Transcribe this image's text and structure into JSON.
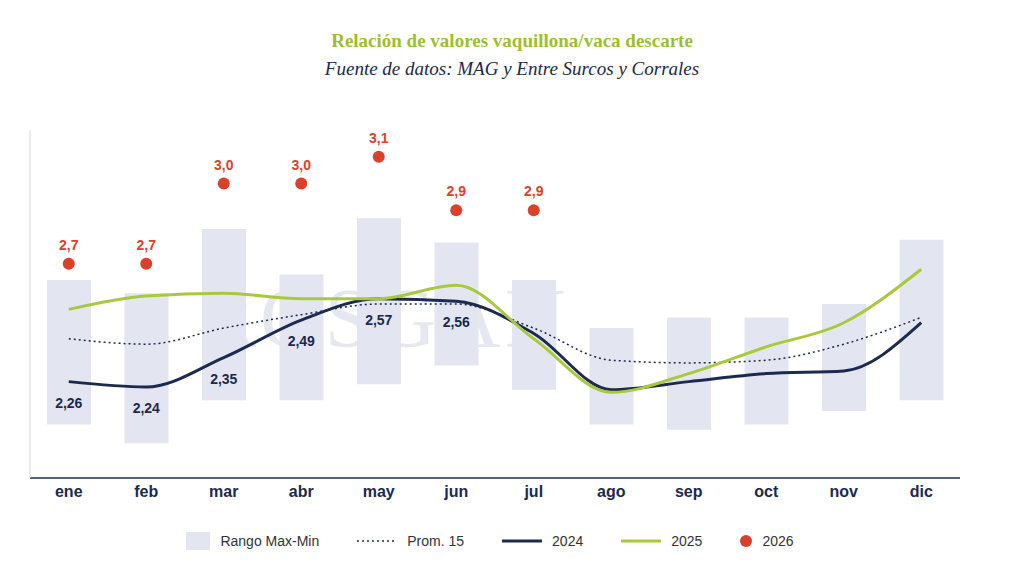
{
  "chart_data": {
    "type": "line",
    "title": "Relación de valores vaquillona/vaca descarte",
    "subtitle": "Fuente de datos: MAG y Entre Surcos y Corrales",
    "watermark": "ROSGAN",
    "categories": [
      "ene",
      "feb",
      "mar",
      "abr",
      "may",
      "jun",
      "jul",
      "ago",
      "sep",
      "oct",
      "nov",
      "dic"
    ],
    "ylim": [
      1.9,
      3.2
    ],
    "yticks": [],
    "tick_labels": "x",
    "grid": false,
    "legend": "bottom",
    "series": [
      {
        "name": "Rango Max-Min",
        "type": "range",
        "color": "#e3e6f0",
        "min": [
          2.1,
          2.03,
          2.19,
          2.19,
          2.25,
          2.32,
          2.23,
          2.1,
          2.08,
          2.1,
          2.15,
          2.19
        ],
        "max": [
          2.64,
          2.59,
          2.83,
          2.66,
          2.87,
          2.78,
          2.64,
          2.46,
          2.5,
          2.5,
          2.55,
          2.79
        ]
      },
      {
        "name": "Prom. 15",
        "type": "line",
        "line_style": "dotted",
        "color": "#1b2a4e",
        "values": [
          2.42,
          2.4,
          2.46,
          2.51,
          2.55,
          2.55,
          2.46,
          2.34,
          2.33,
          2.34,
          2.4,
          2.5
        ]
      },
      {
        "name": "2024",
        "type": "line",
        "line_style": "solid",
        "color": "#1b2a4e",
        "data_labels": true,
        "values": [
          2.26,
          2.24,
          2.35,
          2.49,
          2.57,
          2.56,
          2.44,
          2.23,
          2.26,
          2.29,
          2.3,
          2.48
        ],
        "value_labels": [
          "2,26",
          "2,24",
          "2,35",
          "2,49",
          "2,57",
          "2,56",
          null,
          null,
          null,
          null,
          null,
          null
        ]
      },
      {
        "name": "2025",
        "type": "line",
        "line_style": "solid",
        "color": "#a9c93c",
        "values": [
          2.53,
          2.58,
          2.59,
          2.57,
          2.57,
          2.62,
          2.42,
          2.22,
          2.29,
          2.39,
          2.48,
          2.68
        ]
      },
      {
        "name": "2026",
        "type": "scatter",
        "marker": "circle",
        "color": "#d9412b",
        "data_labels": true,
        "values": [
          2.7,
          2.7,
          3.0,
          3.0,
          3.1,
          2.9,
          2.9,
          null,
          null,
          null,
          null,
          null
        ],
        "value_labels": [
          "2,7",
          "2,7",
          "3,0",
          "3,0",
          "3,1",
          "2,9",
          "2,9",
          null,
          null,
          null,
          null,
          null
        ]
      }
    ]
  }
}
